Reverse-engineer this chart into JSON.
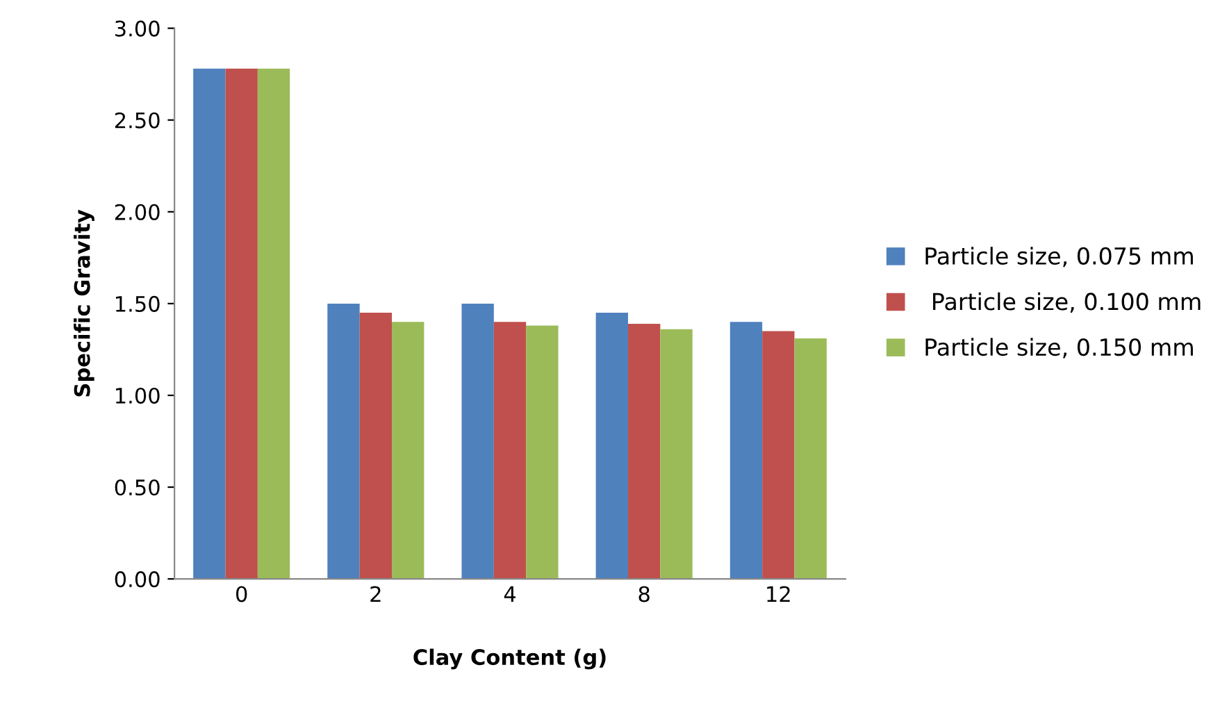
{
  "chart_data": {
    "type": "bar",
    "xlabel": "Clay Content (g)",
    "ylabel": "Specific Gravity",
    "categories": [
      "0",
      "2",
      "4",
      "8",
      "12"
    ],
    "series": [
      {
        "name": "Particle size, 0.075 mm",
        "color": "#4f81bd",
        "values": [
          2.78,
          1.5,
          1.5,
          1.45,
          1.4
        ]
      },
      {
        "name": " Particle size, 0.100 mm",
        "color": "#c0504d",
        "values": [
          2.78,
          1.45,
          1.4,
          1.39,
          1.35
        ]
      },
      {
        "name": "Particle size, 0.150 mm",
        "color": "#9bbb59",
        "values": [
          2.78,
          1.4,
          1.38,
          1.36,
          1.31
        ]
      }
    ],
    "ylim": [
      0,
      3
    ],
    "yticks": [
      {
        "value": 0,
        "label": "0.00"
      },
      {
        "value": 0.5,
        "label": "0.50"
      },
      {
        "value": 1,
        "label": "1.00"
      },
      {
        "value": 1.5,
        "label": "1.50"
      },
      {
        "value": 2,
        "label": "2.00"
      },
      {
        "value": 2.5,
        "label": "2.50"
      },
      {
        "value": 3,
        "label": "3.00"
      }
    ],
    "grid": false,
    "legend": "right"
  }
}
